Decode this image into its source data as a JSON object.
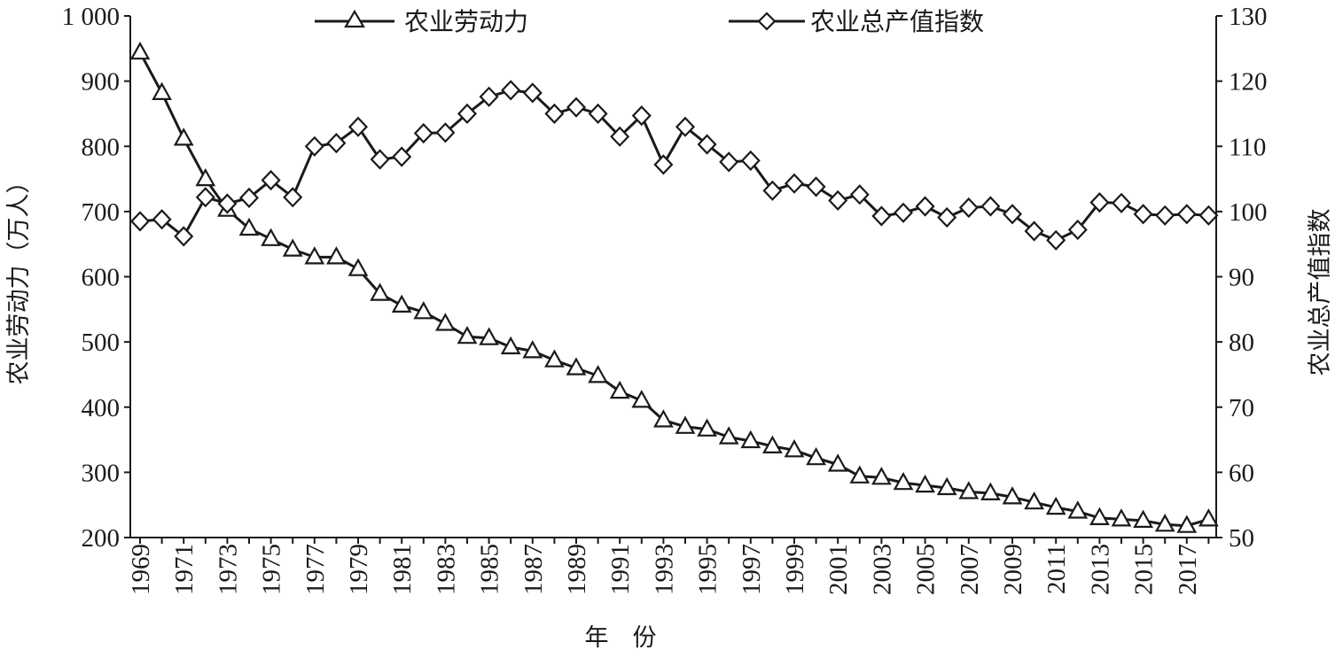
{
  "chart_data": {
    "type": "line",
    "title": "",
    "xlabel": "年　份",
    "ylabel_left": "农业劳动力（万人）",
    "ylabel_right": "农业总产值指数",
    "x": [
      1969,
      1970,
      1971,
      1972,
      1973,
      1974,
      1975,
      1976,
      1977,
      1978,
      1979,
      1980,
      1981,
      1982,
      1983,
      1984,
      1985,
      1986,
      1987,
      1988,
      1989,
      1990,
      1991,
      1992,
      1993,
      1994,
      1995,
      1996,
      1997,
      1998,
      1999,
      2000,
      2001,
      2002,
      2003,
      2004,
      2005,
      2006,
      2007,
      2008,
      2009,
      2010,
      2011,
      2012,
      2013,
      2014,
      2015,
      2016,
      2017,
      2018
    ],
    "x_tick_labels": [
      "1969",
      "1971",
      "1973",
      "1975",
      "1977",
      "1979",
      "1981",
      "1983",
      "1985",
      "1987",
      "1989",
      "1991",
      "1993",
      "1995",
      "1997",
      "1999",
      "2001",
      "2003",
      "2005",
      "2007",
      "2009",
      "2011",
      "2013",
      "2015",
      "2017"
    ],
    "ylim_left": [
      200,
      1000
    ],
    "y_ticks_left": [
      "200",
      "300",
      "400",
      "500",
      "600",
      "700",
      "800",
      "900",
      "1 000"
    ],
    "ylim_right": [
      50,
      130
    ],
    "y_ticks_right": [
      "50",
      "60",
      "70",
      "80",
      "90",
      "100",
      "110",
      "120",
      "130"
    ],
    "grid": false,
    "legend_position": "top",
    "series": [
      {
        "name": "农业劳动力",
        "axis": "left",
        "marker": "triangle",
        "values": [
          944,
          882,
          812,
          750,
          703,
          674,
          658,
          642,
          630,
          630,
          612,
          574,
          556,
          546,
          528,
          508,
          506,
          492,
          486,
          472,
          460,
          448,
          424,
          410,
          380,
          370,
          366,
          354,
          348,
          340,
          334,
          322,
          312,
          294,
          292,
          284,
          280,
          276,
          270,
          268,
          262,
          254,
          246,
          240,
          230,
          228,
          226,
          220,
          218,
          228
        ]
      },
      {
        "name": "农业总产值指数",
        "axis": "right",
        "marker": "diamond",
        "values": [
          98.5,
          98.8,
          96.2,
          102.2,
          101.2,
          102.1,
          104.8,
          102.2,
          110,
          110.5,
          113,
          108,
          108.4,
          112,
          112.1,
          115,
          117.6,
          118.6,
          118.2,
          115,
          116,
          115,
          111.5,
          114.7,
          107.2,
          113,
          110.3,
          107.6,
          107.8,
          103.2,
          104.3,
          103.8,
          101.7,
          102.6,
          99.3,
          99.8,
          100.8,
          99.1,
          100.6,
          100.8,
          99.6,
          97,
          95.6,
          97.2,
          101.4,
          101.3,
          99.6,
          99.4,
          99.6,
          99.4
        ]
      }
    ]
  }
}
